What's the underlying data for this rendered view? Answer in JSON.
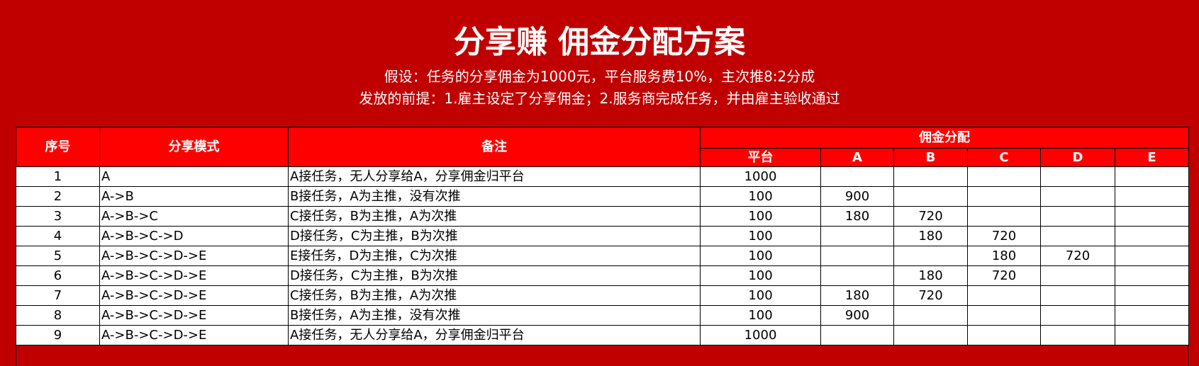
{
  "title": "分享赚 佣金分配方案",
  "subtitle_1": "假设：任务的分享佣金为1000元，平台服务费10%，主次推8:2分成",
  "subtitle_2": "发放的前提：1.雇主设定了分享佣金；2.服务商完成任务，并由雇主验收通过",
  "colors": {
    "background": "#C00000",
    "header": "#FF0000"
  },
  "table": {
    "headers": {
      "index": "序号",
      "mode": "分享模式",
      "note": "备注",
      "group": "佣金分配",
      "platform": "平台",
      "a": "A",
      "b": "B",
      "c": "C",
      "d": "D",
      "e": "E"
    },
    "rows": [
      {
        "index": "1",
        "mode": "A",
        "note": "A接任务，无人分享给A，分享佣金归平台",
        "platform": "1000",
        "a": "",
        "b": "",
        "c": "",
        "d": "",
        "e": ""
      },
      {
        "index": "2",
        "mode": "A->B",
        "note": "B接任务，A为主推，没有次推",
        "platform": "100",
        "a": "900",
        "b": "",
        "c": "",
        "d": "",
        "e": ""
      },
      {
        "index": "3",
        "mode": "A->B->C",
        "note": "C接任务，B为主推，A为次推",
        "platform": "100",
        "a": "180",
        "b": "720",
        "c": "",
        "d": "",
        "e": ""
      },
      {
        "index": "4",
        "mode": "A->B->C->D",
        "note": "D接任务，C为主推，B为次推",
        "platform": "100",
        "a": "",
        "b": "180",
        "c": "720",
        "d": "",
        "e": ""
      },
      {
        "index": "5",
        "mode": "A->B->C->D->E",
        "note": "E接任务，D为主推，C为次推",
        "platform": "100",
        "a": "",
        "b": "",
        "c": "180",
        "d": "720",
        "e": ""
      },
      {
        "index": "6",
        "mode": "A->B->C->D->E",
        "note": "D接任务，C为主推，B为次推",
        "platform": "100",
        "a": "",
        "b": "180",
        "c": "720",
        "d": "",
        "e": ""
      },
      {
        "index": "7",
        "mode": "A->B->C->D->E",
        "note": "C接任务，B为主推，A为次推",
        "platform": "100",
        "a": "180",
        "b": "720",
        "c": "",
        "d": "",
        "e": ""
      },
      {
        "index": "8",
        "mode": "A->B->C->D->E",
        "note": "B接任务，A为主推，没有次推",
        "platform": "100",
        "a": "900",
        "b": "",
        "c": "",
        "d": "",
        "e": ""
      },
      {
        "index": "9",
        "mode": "A->B->C->D->E",
        "note": "A接任务，无人分享给A，分享佣金归平台",
        "platform": "1000",
        "a": "",
        "b": "",
        "c": "",
        "d": "",
        "e": ""
      }
    ]
  }
}
